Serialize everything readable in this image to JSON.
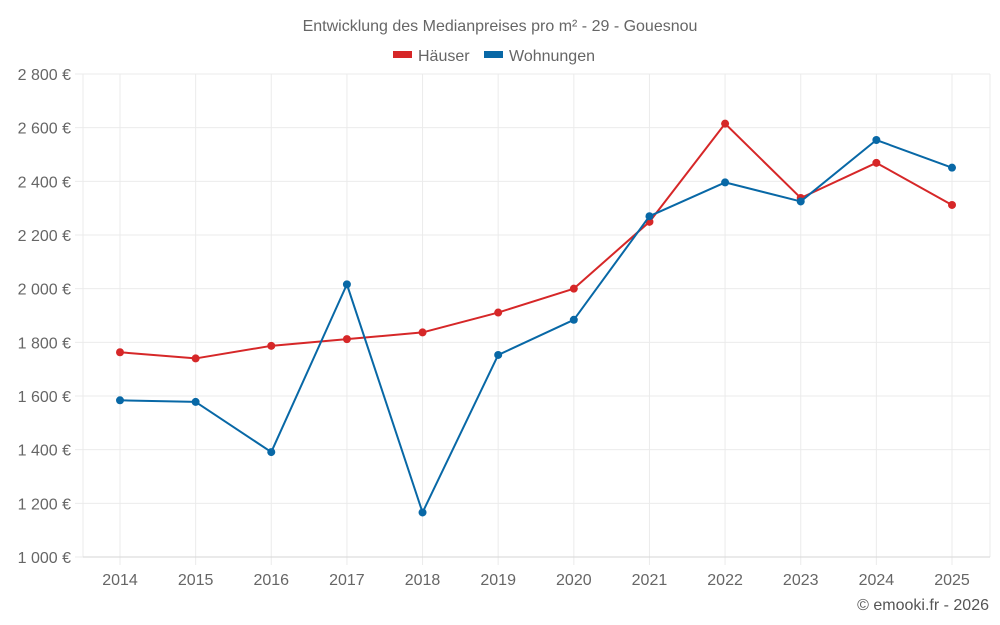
{
  "chart_data": {
    "type": "line",
    "title": "Entwicklung des Medianpreises pro m² - 29 - Gouesnou",
    "xlabel": "",
    "ylabel": "",
    "categories": [
      "2014",
      "2015",
      "2016",
      "2017",
      "2018",
      "2019",
      "2020",
      "2021",
      "2022",
      "2023",
      "2024",
      "2025"
    ],
    "series": [
      {
        "name": "Häuser",
        "color": "#d62728",
        "values": [
          1763,
          1740,
          1787,
          1812,
          1837,
          1911,
          2000,
          2249,
          2615,
          2338,
          2469,
          2312
        ]
      },
      {
        "name": "Wohnungen",
        "color": "#0868a6",
        "values": [
          1584,
          1578,
          1391,
          2016,
          1166,
          1753,
          1884,
          2270,
          2396,
          2325,
          2554,
          2451
        ]
      }
    ],
    "ylim": [
      1000,
      2800
    ],
    "yticks": [
      1000,
      1200,
      1400,
      1600,
      1800,
      2000,
      2200,
      2400,
      2600,
      2800
    ],
    "ytick_labels": [
      "1 000 €",
      "1 200 €",
      "1 400 €",
      "1 600 €",
      "1 800 €",
      "2 000 €",
      "2 200 €",
      "2 400 €",
      "2 600 €",
      "2 800 €"
    ],
    "grid": true,
    "legend": "top-center"
  },
  "credit": "© emooki.fr - 2026"
}
